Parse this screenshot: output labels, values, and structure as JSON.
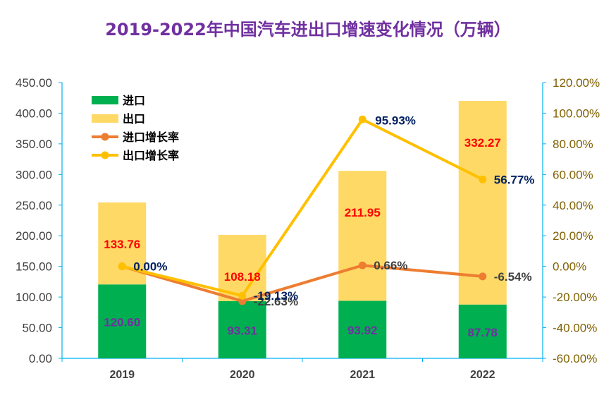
{
  "chart_data": {
    "type": "bar-line-combo",
    "title": "2019-2022年中国汽车进出口增速变化情况（万辆）",
    "categories": [
      "2019",
      "2020",
      "2021",
      "2022"
    ],
    "bars": {
      "stacked": true,
      "series": [
        {
          "name": "进口",
          "values": [
            120.6,
            93.31,
            93.92,
            87.78
          ],
          "color": "#00B050",
          "labels": [
            "120.60",
            "93.31",
            "93.92",
            "87.78"
          ],
          "label_color": "#7030A0"
        },
        {
          "name": "出口",
          "values": [
            133.76,
            108.18,
            211.95,
            332.27
          ],
          "color": "#FFD966",
          "labels": [
            "133.76",
            "108.18",
            "211.95",
            "332.27"
          ],
          "label_color": "#FF0000"
        }
      ]
    },
    "lines": {
      "series": [
        {
          "name": "进口增长率",
          "values": [
            0.0,
            -22.63,
            0.66,
            -6.54
          ],
          "color": "#ED7D31",
          "labels": [
            "",
            "-22.63%",
            "0.66%",
            "-6.54%"
          ],
          "label_color": "#404040"
        },
        {
          "name": "出口增长率",
          "values": [
            0.0,
            -19.13,
            95.93,
            56.77
          ],
          "color": "#FFC000",
          "labels": [
            "0.00%",
            "-19.13%",
            "95.93%",
            "56.77%"
          ],
          "label_color": "#002060"
        }
      ]
    },
    "y_left": {
      "min": 0,
      "max": 450,
      "step": 50,
      "ticks": [
        "0.00",
        "50.00",
        "100.00",
        "150.00",
        "200.00",
        "250.00",
        "300.00",
        "350.00",
        "400.00",
        "450.00"
      ]
    },
    "y_right": {
      "min": -60,
      "max": 120,
      "step": 20,
      "ticks": [
        "-60.00%",
        "-40.00%",
        "-20.00%",
        "0.00%",
        "20.00%",
        "40.00%",
        "60.00%",
        "80.00%",
        "100.00%",
        "120.00%"
      ]
    },
    "legend_position": "top-left",
    "colors": {
      "title": "#7030A0",
      "left_axis": "#404040",
      "right_axis": "#806000",
      "axis_line": "#00B0F0",
      "category": "#404040"
    }
  }
}
